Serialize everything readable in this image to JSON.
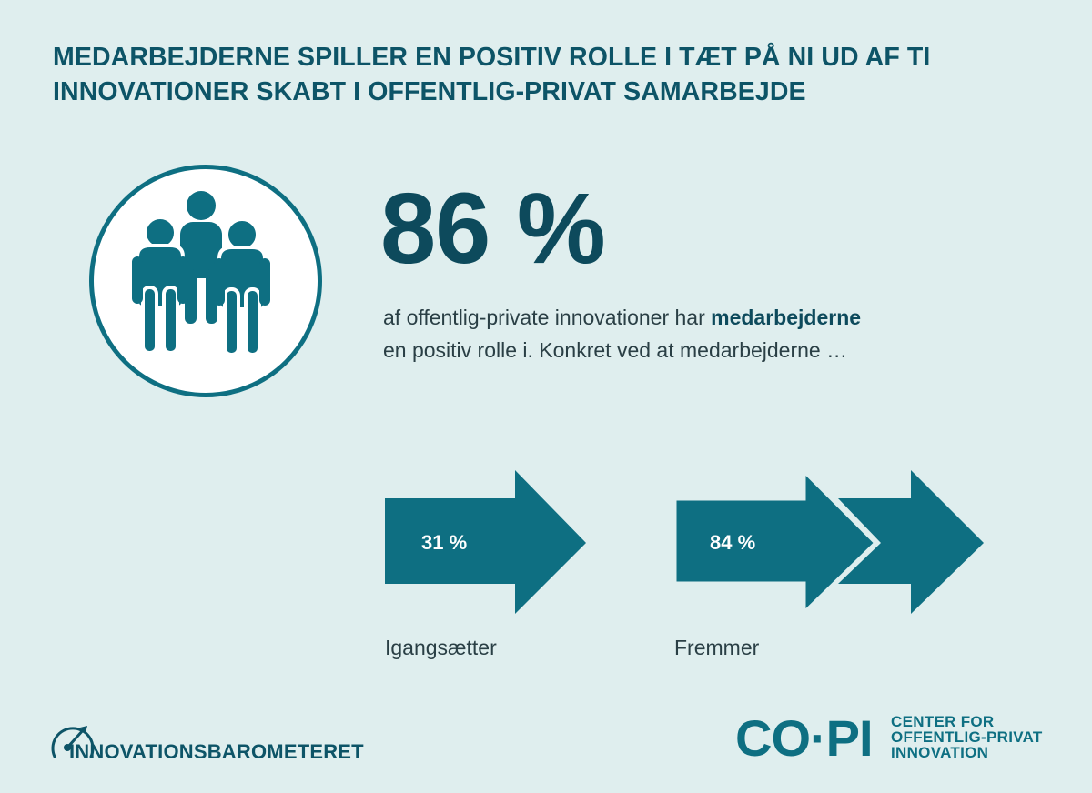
{
  "title": {
    "line1": "MEDARBEJDERNE SPILLER EN POSITIV ROLLE I TÆT PÅ NI UD AF TI",
    "line2": "INNOVATIONER SKABT I OFFENTLIG-PRIVAT SAMARBEJDE"
  },
  "headline": {
    "percent": "86 %",
    "desc_part1": "af offentlig-private innovationer har ",
    "desc_bold": "medarbejderne",
    "desc_part2": "en positiv rolle i. Konkret ved at medarbejderne …"
  },
  "roles": [
    {
      "percent_label": "31 %",
      "value": 31,
      "label": "Igangsætter"
    },
    {
      "percent_label": "84 %",
      "value": 84,
      "label": "Fremmer"
    }
  ],
  "colors": {
    "background": "#dfeeee",
    "accent": "#0e6f82",
    "title": "#0d5467"
  },
  "icons": {
    "people": "three-people-icon",
    "barometer": "gauge-icon"
  },
  "footer": {
    "left_logo": "INNOVATIONSBAROMETERET",
    "right_mark": "CO·PI",
    "right_sub_1": "CENTER FOR",
    "right_sub_2": "OFFENTLIG-PRIVAT",
    "right_sub_3": "INNOVATION"
  }
}
